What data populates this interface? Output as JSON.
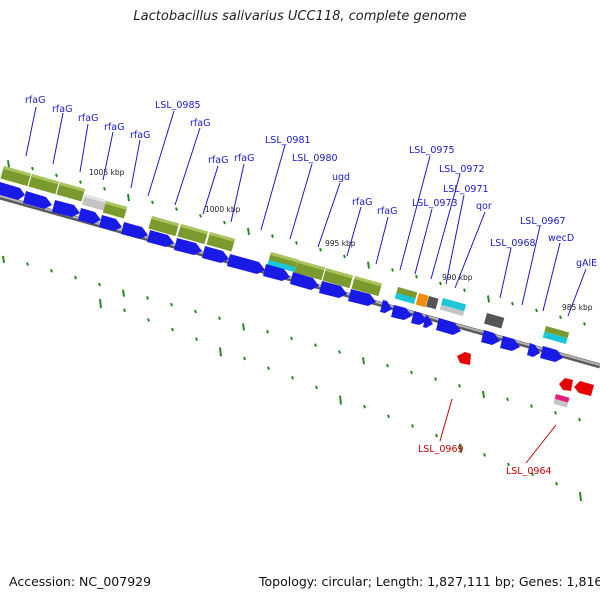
{
  "title": "Lactobacillus salivarius UCC118, complete genome",
  "footer": {
    "accession": "Accession: NC_007929",
    "topology": "Topology: circular; Length: 1,827,111 bp; Genes: 1,816"
  },
  "scale_labels": [
    "1005 kbp",
    "1000 kbp",
    "995 kbp",
    "990 kbp",
    "985 kbp"
  ],
  "colors": {
    "forward_gene": "#1a1ae6",
    "reverse_gene": "#e60000",
    "cog_green": "#7a9a2e",
    "cog_cyan": "#19c8d8",
    "cog_gray": "#bdbdbd",
    "cog_dark": "#555555",
    "cog_orange": "#f0900a",
    "cog_pink": "#e0207a",
    "backbone": "#8a8a8a",
    "tick": "#2a8a2a",
    "label_forward": "#1a1acc",
    "label_reverse": "#cc0000"
  },
  "forward_labels": [
    "rfaG",
    "rfaG",
    "rfaG",
    "rfaG",
    "rfaG",
    "LSL_0985",
    "rfaG",
    "rfaG",
    "rfaG",
    "LSL_0981",
    "LSL_0980",
    "ugd",
    "rfaG",
    "rfaG",
    "LSL_0975",
    "LSL_0973",
    "LSL_0972",
    "LSL_0971",
    "qor",
    "LSL_0968",
    "LSL_0967",
    "wecD",
    "gAlE"
  ],
  "reverse_labels": [
    "LSL_0969",
    "LSL_0964"
  ]
}
